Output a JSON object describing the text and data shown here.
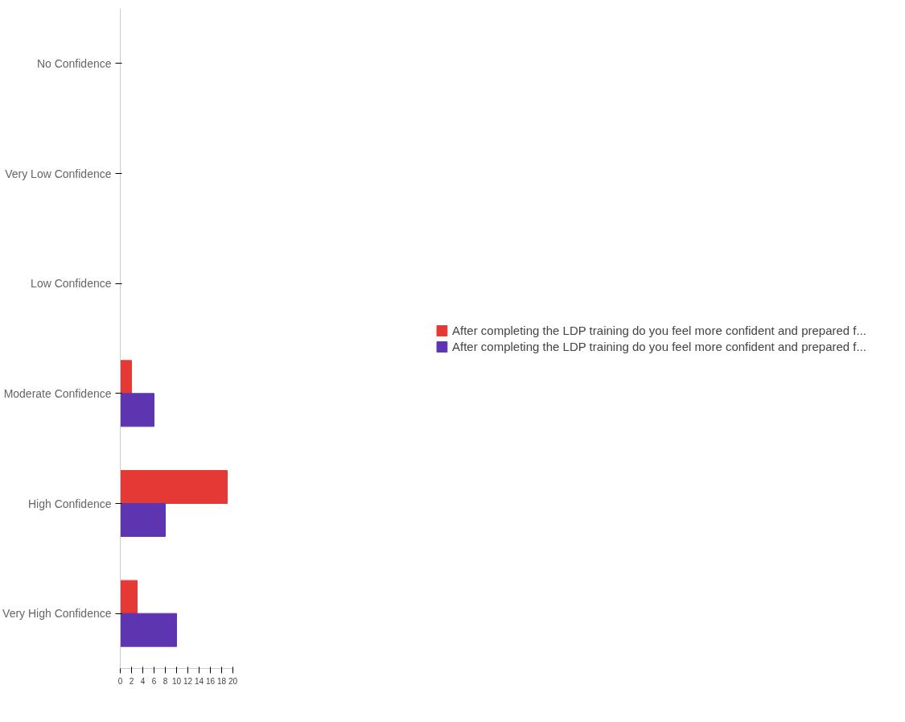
{
  "chart_data": {
    "type": "bar",
    "orientation": "horizontal",
    "categories": [
      "No Confidence",
      "Very Low Confidence",
      "Low Confidence",
      "Moderate Confidence",
      "High Confidence",
      "Very High Confidence"
    ],
    "series": [
      {
        "name": "After completing the LDP training do you feel more confident and prepared f...",
        "color": "#e53935",
        "values": [
          0,
          0,
          0,
          2,
          19,
          3
        ]
      },
      {
        "name": "After completing the LDP training do you feel more confident and prepared f...",
        "color": "#5e35b1",
        "values": [
          0,
          0,
          0,
          6,
          8,
          10
        ]
      }
    ],
    "xlim": [
      0,
      20
    ],
    "xticks": [
      0,
      2,
      4,
      6,
      8,
      10,
      12,
      14,
      16,
      18,
      20
    ],
    "grid": false,
    "legend": "right"
  }
}
